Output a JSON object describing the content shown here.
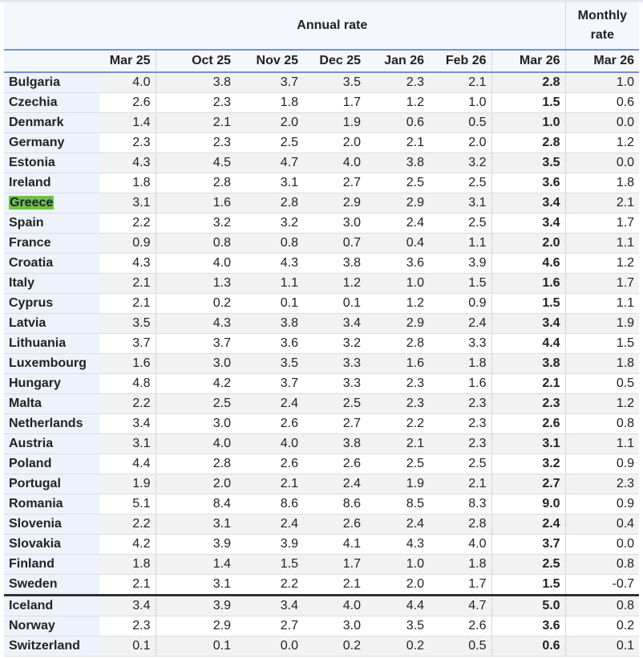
{
  "header": {
    "annual_label": "Annual rate",
    "monthly_label": "Monthly rate",
    "months": [
      "Mar 25",
      "Oct 25",
      "Nov 25",
      "Dec 25",
      "Jan 26",
      "Feb 26",
      "Mar 26",
      "Mar 26"
    ]
  },
  "highlight_color": "#6cc24a",
  "rows": [
    {
      "country": "Bulgaria",
      "values": [
        "4.0",
        "3.8",
        "3.7",
        "3.5",
        "2.3",
        "2.1",
        "2.8",
        "1.0"
      ]
    },
    {
      "country": "Czechia",
      "values": [
        "2.6",
        "2.3",
        "1.8",
        "1.7",
        "1.2",
        "1.0",
        "1.5",
        "0.6"
      ]
    },
    {
      "country": "Denmark",
      "values": [
        "1.4",
        "2.1",
        "2.0",
        "1.9",
        "0.6",
        "0.5",
        "1.0",
        "0.0"
      ]
    },
    {
      "country": "Germany",
      "values": [
        "2.3",
        "2.3",
        "2.5",
        "2.0",
        "2.1",
        "2.0",
        "2.8",
        "1.2"
      ]
    },
    {
      "country": "Estonia",
      "values": [
        "4.3",
        "4.5",
        "4.7",
        "4.0",
        "3.8",
        "3.2",
        "3.5",
        "0.0"
      ]
    },
    {
      "country": "Ireland",
      "values": [
        "1.8",
        "2.8",
        "3.1",
        "2.7",
        "2.5",
        "2.5",
        "3.6",
        "1.8"
      ]
    },
    {
      "country": "Greece",
      "highlighted": true,
      "values": [
        "3.1",
        "1.6",
        "2.8",
        "2.9",
        "2.9",
        "3.1",
        "3.4",
        "2.1"
      ]
    },
    {
      "country": "Spain",
      "values": [
        "2.2",
        "3.2",
        "3.2",
        "3.0",
        "2.4",
        "2.5",
        "3.4",
        "1.7"
      ]
    },
    {
      "country": "France",
      "values": [
        "0.9",
        "0.8",
        "0.8",
        "0.7",
        "0.4",
        "1.1",
        "2.0",
        "1.1"
      ]
    },
    {
      "country": "Croatia",
      "values": [
        "4.3",
        "4.0",
        "4.3",
        "3.8",
        "3.6",
        "3.9",
        "4.6",
        "1.2"
      ]
    },
    {
      "country": "Italy",
      "values": [
        "2.1",
        "1.3",
        "1.1",
        "1.2",
        "1.0",
        "1.5",
        "1.6",
        "1.7"
      ]
    },
    {
      "country": "Cyprus",
      "values": [
        "2.1",
        "0.2",
        "0.1",
        "0.1",
        "1.2",
        "0.9",
        "1.5",
        "1.1"
      ]
    },
    {
      "country": "Latvia",
      "values": [
        "3.5",
        "4.3",
        "3.8",
        "3.4",
        "2.9",
        "2.4",
        "3.4",
        "1.9"
      ]
    },
    {
      "country": "Lithuania",
      "values": [
        "3.7",
        "3.7",
        "3.6",
        "3.2",
        "2.8",
        "3.3",
        "4.4",
        "1.5"
      ]
    },
    {
      "country": "Luxembourg",
      "values": [
        "1.6",
        "3.0",
        "3.5",
        "3.3",
        "1.6",
        "1.8",
        "3.8",
        "1.8"
      ]
    },
    {
      "country": "Hungary",
      "values": [
        "4.8",
        "4.2",
        "3.7",
        "3.3",
        "2.3",
        "1.6",
        "2.1",
        "0.5"
      ]
    },
    {
      "country": "Malta",
      "values": [
        "2.2",
        "2.5",
        "2.4",
        "2.5",
        "2.3",
        "2.3",
        "2.3",
        "1.2"
      ]
    },
    {
      "country": "Netherlands",
      "values": [
        "3.4",
        "3.0",
        "2.6",
        "2.7",
        "2.2",
        "2.3",
        "2.6",
        "0.8"
      ]
    },
    {
      "country": "Austria",
      "values": [
        "3.1",
        "4.0",
        "4.0",
        "3.8",
        "2.1",
        "2.3",
        "3.1",
        "1.1"
      ]
    },
    {
      "country": "Poland",
      "values": [
        "4.4",
        "2.8",
        "2.6",
        "2.6",
        "2.5",
        "2.5",
        "3.2",
        "0.9"
      ]
    },
    {
      "country": "Portugal",
      "values": [
        "1.9",
        "2.0",
        "2.1",
        "2.4",
        "1.9",
        "2.1",
        "2.7",
        "2.3"
      ]
    },
    {
      "country": "Romania",
      "values": [
        "5.1",
        "8.4",
        "8.6",
        "8.6",
        "8.5",
        "8.3",
        "9.0",
        "0.9"
      ]
    },
    {
      "country": "Slovenia",
      "values": [
        "2.2",
        "3.1",
        "2.4",
        "2.6",
        "2.4",
        "2.8",
        "2.4",
        "0.4"
      ]
    },
    {
      "country": "Slovakia",
      "values": [
        "4.2",
        "3.9",
        "3.9",
        "4.1",
        "4.3",
        "4.0",
        "3.7",
        "0.0"
      ]
    },
    {
      "country": "Finland",
      "values": [
        "1.8",
        "1.4",
        "1.5",
        "1.7",
        "1.0",
        "1.8",
        "2.5",
        "0.8"
      ]
    },
    {
      "country": "Sweden",
      "values": [
        "2.1",
        "3.1",
        "2.2",
        "2.1",
        "2.0",
        "1.7",
        "1.5",
        "-0.7"
      ]
    },
    {
      "country": "Iceland",
      "separator": true,
      "values": [
        "3.4",
        "3.9",
        "3.4",
        "4.0",
        "4.4",
        "4.7",
        "5.0",
        "0.8"
      ]
    },
    {
      "country": "Norway",
      "values": [
        "2.3",
        "2.9",
        "2.7",
        "3.0",
        "3.5",
        "2.6",
        "3.6",
        "0.2"
      ]
    },
    {
      "country": "Switzerland",
      "values": [
        "0.1",
        "0.1",
        "0.0",
        "0.2",
        "0.2",
        "0.5",
        "0.6",
        "0.1"
      ]
    }
  ]
}
